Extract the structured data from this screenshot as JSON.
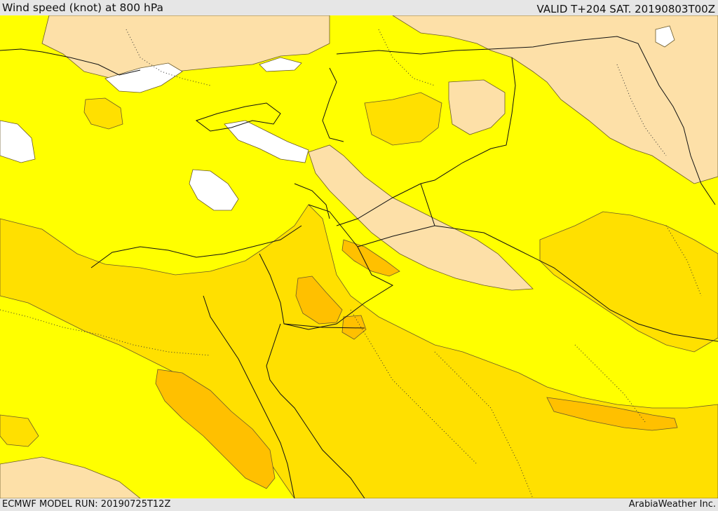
{
  "header": {
    "title": "Wind speed (knot) at 800 hPa",
    "valid": "VALID T+204 SAT. 20190803T00Z"
  },
  "footer": {
    "model_run": "ECMWF MODEL RUN: 20190725T12Z",
    "credit": "ArabiaWeather Inc."
  },
  "map": {
    "colors": {
      "water_land_base": "#ffff00",
      "band_peach": "#fde0a8",
      "band_white": "#ffffff",
      "band_gold": "#ffe000",
      "band_orange": "#ffc000",
      "band_dark_orange": "#f5a800",
      "border": "#111111"
    }
  }
}
